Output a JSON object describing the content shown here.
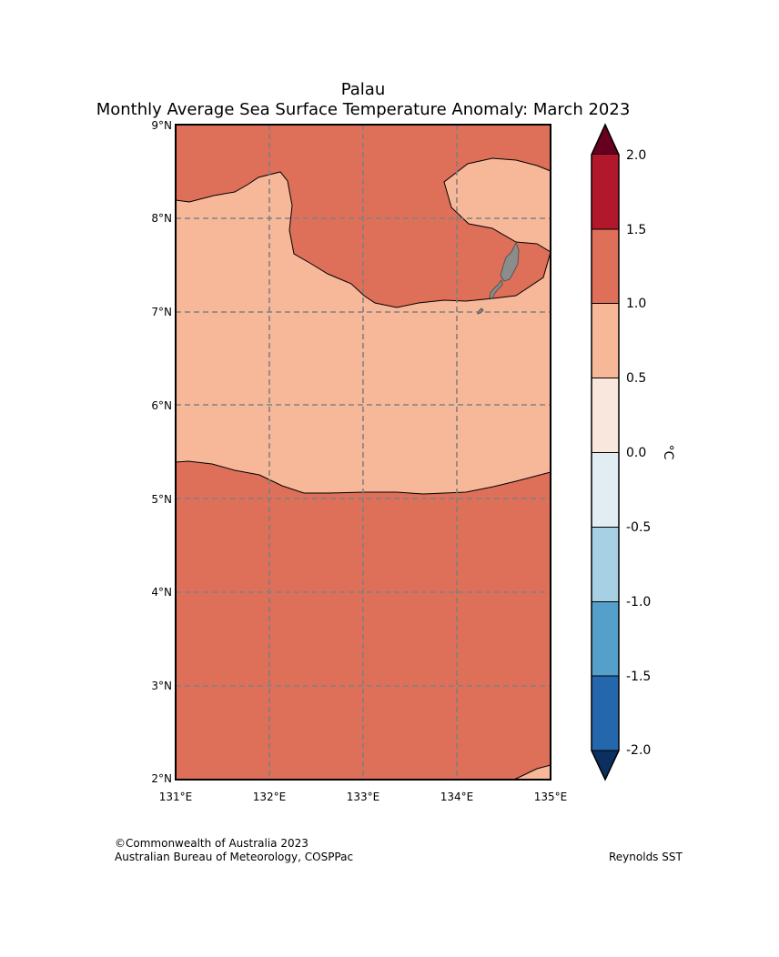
{
  "title": {
    "line1": "Palau",
    "line2": "Monthly Average Sea Surface Temperature Anomaly: March 2023"
  },
  "map": {
    "lon_ticks": [
      "131°E",
      "132°E",
      "133°E",
      "134°E",
      "135°E"
    ],
    "lat_ticks": [
      "9°N",
      "8°N",
      "7°N",
      "6°N",
      "5°N",
      "4°N",
      "3°N",
      "2°N"
    ],
    "extent": {
      "lon": [
        131,
        135
      ],
      "lat": [
        2,
        9
      ]
    },
    "gridlines": "dashed grey",
    "land_color": "#8c8c8c"
  },
  "colorbar": {
    "unit_label": "°C",
    "tick_labels": [
      "2.0",
      "1.5",
      "1.0",
      "0.5",
      "0.0",
      "-0.5",
      "-1.0",
      "-1.5",
      "-2.0"
    ],
    "bins": [
      {
        "range": "> 2.0",
        "color": "#67001f"
      },
      {
        "range": "1.5 to 2.0",
        "color": "#b2182b"
      },
      {
        "range": "1.0 to 1.5",
        "color": "#de6f58"
      },
      {
        "range": "0.5 to 1.0",
        "color": "#f6b899"
      },
      {
        "range": "0.0 to 0.5",
        "color": "#f9e6dc"
      },
      {
        "range": "-0.5 to 0.0",
        "color": "#e1edf3"
      },
      {
        "range": "-1.0 to -0.5",
        "color": "#a7d0e4"
      },
      {
        "range": "-1.5 to -1.0",
        "color": "#559fcb"
      },
      {
        "range": "-2.0 to -1.5",
        "color": "#2467ad"
      },
      {
        "range": "< -2.0",
        "color": "#0b305f"
      }
    ]
  },
  "footer": {
    "copyright": "©Commonwealth of Australia 2023",
    "agency": "Australian Bureau of Meteorology, COSPPac",
    "source": "Reynolds SST"
  }
}
